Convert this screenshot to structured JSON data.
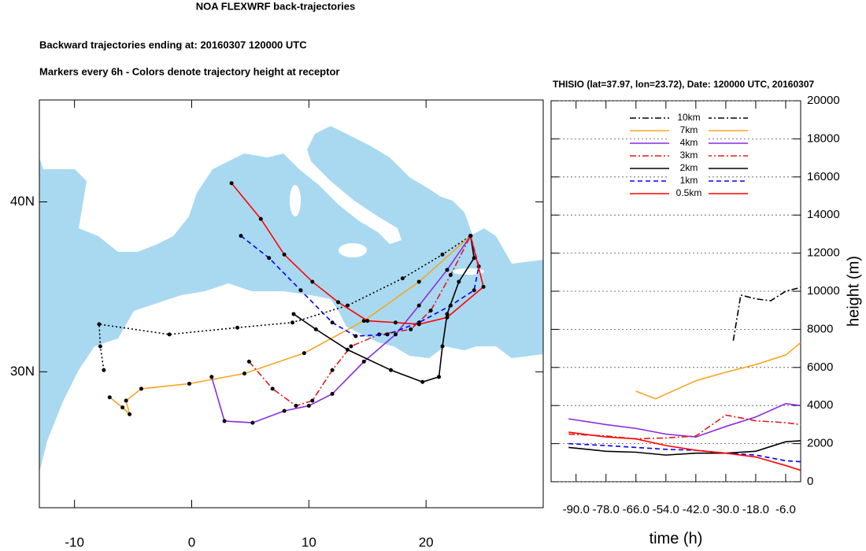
{
  "title": "NOA FLEXWRF back-trajectories",
  "subtitles": [
    "Backward trajectories ending at: 20160307  120000 UTC",
    "Markers every 6h - Colors denote trajectory height at receptor"
  ],
  "chart_data": [
    {
      "type": "line",
      "markers": true,
      "marker_color": "#000000",
      "xlim": [
        -13,
        30
      ],
      "ylim": [
        22,
        46
      ],
      "xticks": [
        -10,
        0,
        10,
        20
      ],
      "yticks": [
        {
          "value": 30,
          "label": "30N"
        },
        {
          "value": 40,
          "label": "40N"
        }
      ],
      "series": [
        {
          "color": "#000000",
          "style": "dotted",
          "x": [
            -7.5,
            -7.8,
            -7.9,
            -1.9,
            3.9,
            8.6,
            13.3,
            18.0,
            21.4,
            23.8
          ],
          "values": [
            30.1,
            31.5,
            32.8,
            32.2,
            32.6,
            32.9,
            33.9,
            35.5,
            36.9,
            38.0
          ]
        },
        {
          "color": "#f5a623",
          "style": "solid",
          "x": [
            -7.0,
            -5.9,
            -5.3,
            -5.6,
            -4.3,
            -0.2,
            4.5,
            9.6,
            14.7,
            19.4,
            23.8
          ],
          "values": [
            28.5,
            27.9,
            27.5,
            28.3,
            29.0,
            29.3,
            29.9,
            31.1,
            33.0,
            35.3,
            38.0
          ]
        },
        {
          "color": "#8a2be2",
          "style": "solid",
          "x": [
            1.7,
            2.8,
            5.2,
            7.9,
            10.0,
            12.0,
            14.7,
            17.4,
            19.4,
            21.8,
            23.8
          ],
          "values": [
            29.7,
            27.1,
            27.0,
            27.7,
            28.0,
            28.7,
            30.6,
            32.2,
            33.9,
            36.0,
            38.0
          ]
        },
        {
          "color": "#e41a1c",
          "style": "dashdot",
          "x": [
            4.9,
            6.9,
            8.9,
            10.3,
            12.0,
            13.6,
            16.0,
            18.7,
            20.4,
            22.1,
            23.8
          ],
          "values": [
            30.6,
            29.0,
            28.0,
            28.3,
            30.1,
            31.5,
            32.2,
            32.5,
            33.6,
            35.7,
            38.0
          ]
        },
        {
          "color": "#000000",
          "style": "solid",
          "x": [
            8.7,
            10.6,
            13.3,
            17.0,
            19.7,
            21.1,
            21.4,
            21.8,
            22.8,
            24.1,
            23.8
          ],
          "values": [
            33.4,
            32.5,
            31.3,
            30.1,
            29.4,
            29.7,
            31.5,
            33.4,
            35.3,
            36.7,
            38.0
          ]
        },
        {
          "color": "#0000ff",
          "style": "dashed",
          "x": [
            4.2,
            6.6,
            9.3,
            12.0,
            14.0,
            16.7,
            19.4,
            22.1,
            24.1,
            24.5,
            23.8
          ],
          "values": [
            38.0,
            36.7,
            34.8,
            32.9,
            32.1,
            32.2,
            32.9,
            33.9,
            34.8,
            36.2,
            38.0
          ]
        },
        {
          "color": "#ff0000",
          "style": "solid",
          "x": [
            3.4,
            5.9,
            7.9,
            10.3,
            12.5,
            15.0,
            17.4,
            19.4,
            21.8,
            24.9,
            23.8
          ],
          "values": [
            41.1,
            39.0,
            36.9,
            35.3,
            34.1,
            33.0,
            32.9,
            32.8,
            33.2,
            35.0,
            38.0
          ]
        }
      ]
    },
    {
      "type": "line",
      "title": "THISIO (lat=37.97,  lon=23.72), Date: 120000 UTC, 20160307",
      "xlabel": "time (h)",
      "ylabel": "height (m)",
      "grid": true,
      "xlim": [
        -100,
        0
      ],
      "ylim": [
        0,
        20000
      ],
      "xticks": [
        {
          "value": -90,
          "label": "-90.0"
        },
        {
          "value": -78,
          "label": "-78.0"
        },
        {
          "value": -66,
          "label": "-66.0"
        },
        {
          "value": -54,
          "label": "-54.0"
        },
        {
          "value": -42,
          "label": "-42.0"
        },
        {
          "value": -30,
          "label": "-30.0"
        },
        {
          "value": -18,
          "label": "-18.0"
        },
        {
          "value": -6,
          "label": "-6.0"
        }
      ],
      "yticks": [
        0,
        2000,
        4000,
        6000,
        8000,
        10000,
        12000,
        14000,
        16000,
        18000,
        20000
      ],
      "series": [
        {
          "name": "10km",
          "color": "#000000",
          "style": "dashdot",
          "x": [
            -27,
            -24,
            -18,
            -12,
            -6,
            0
          ],
          "values": [
            7400,
            9800,
            9600,
            9500,
            10000,
            10200
          ]
        },
        {
          "name": "7km",
          "color": "#f5a623",
          "style": "solid",
          "x": [
            -66,
            -58,
            -54,
            -42,
            -30,
            -18,
            -6,
            0
          ],
          "values": [
            4750,
            4350,
            4600,
            5300,
            5750,
            6150,
            6650,
            7300
          ]
        },
        {
          "name": "4km",
          "color": "#8a2be2",
          "style": "solid",
          "x": [
            -93,
            -78,
            -66,
            -54,
            -42,
            -30,
            -18,
            -6,
            0
          ],
          "values": [
            3300,
            3000,
            2800,
            2500,
            2350,
            2900,
            3400,
            4100,
            4000
          ]
        },
        {
          "name": "3km",
          "color": "#e41a1c",
          "style": "dashdot",
          "x": [
            -93,
            -78,
            -66,
            -54,
            -42,
            -30,
            -18,
            -6,
            0
          ],
          "values": [
            2500,
            2400,
            2250,
            2300,
            2400,
            3500,
            3200,
            3100,
            3000
          ]
        },
        {
          "name": "2km",
          "color": "#000000",
          "style": "solid",
          "x": [
            -93,
            -78,
            -66,
            -54,
            -42,
            -30,
            -18,
            -6,
            0
          ],
          "values": [
            1800,
            1600,
            1550,
            1400,
            1500,
            1500,
            1600,
            2100,
            2150
          ]
        },
        {
          "name": "1km",
          "color": "#0000ff",
          "style": "dashed",
          "x": [
            -93,
            -78,
            -66,
            -54,
            -42,
            -30,
            -18,
            -6,
            0
          ],
          "values": [
            2000,
            1900,
            1800,
            1700,
            1650,
            1500,
            1400,
            1100,
            1050
          ]
        },
        {
          "name": "0.5km",
          "color": "#ff0000",
          "style": "solid",
          "x": [
            -93,
            -78,
            -66,
            -54,
            -42,
            -30,
            -18,
            -6,
            0
          ],
          "values": [
            2600,
            2350,
            2250,
            1900,
            1650,
            1500,
            1300,
            850,
            600
          ]
        }
      ]
    }
  ]
}
